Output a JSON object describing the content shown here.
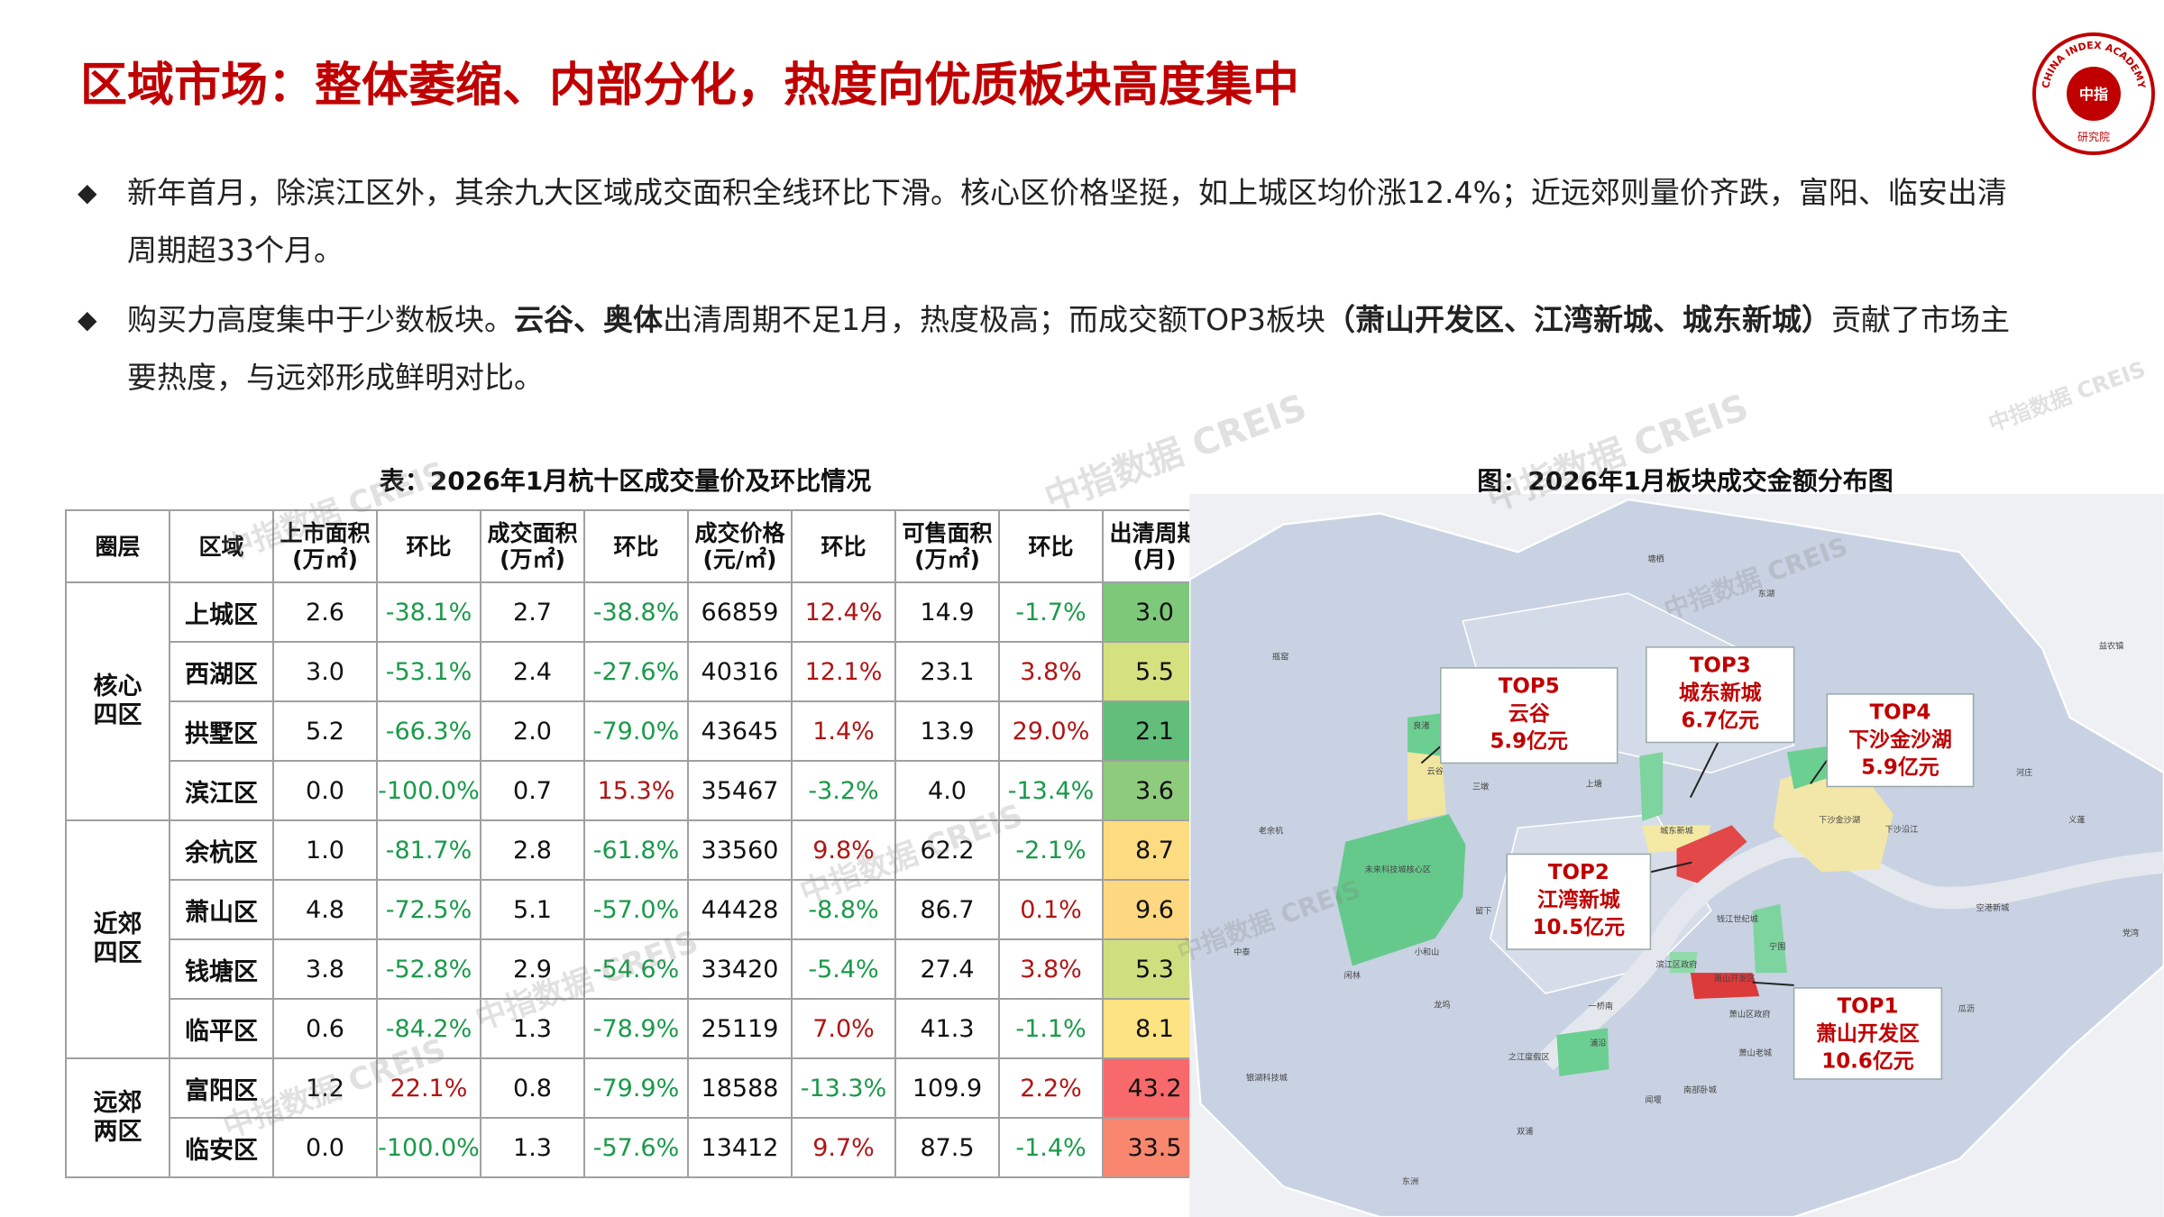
{
  "title": "区域市场：整体萎缩、内部分化，热度向优质板块高度集中",
  "logo": {
    "ring": "CHINA INDEX ACADEMY",
    "center": "中指",
    "bottom": "研究院"
  },
  "watermark": "中指数据 CREIS",
  "bullets": [
    [
      {
        "text": "新年首月，除滨江区外，其余九大区域成交面积全线环比下滑。核心区价格坚挺，如上城区均价涨12.4%；近远郊则量价齐跌，富阳、临安出清周期超33个月。",
        "bold": false
      }
    ],
    [
      {
        "text": "购买力高度集中于少数板块。",
        "bold": false
      },
      {
        "text": "云谷、奥体",
        "bold": true
      },
      {
        "text": "出清周期不足1月，热度极高；而成交额TOP3板块",
        "bold": false
      },
      {
        "text": "（萧山开发区、江湾新城、城东新城）",
        "bold": true
      },
      {
        "text": "贡献了市场主要热度，与远郊形成鲜明对比。",
        "bold": false
      }
    ]
  ],
  "table": {
    "title": "表：2026年1月杭十区成交量价及环比情况",
    "header": [
      "圈层",
      "区域",
      "上市面积\n(万㎡)",
      "环比",
      "成交面积\n(万㎡)",
      "环比",
      "成交价格\n(元/㎡)",
      "环比",
      "可售面积\n(万㎡)",
      "环比",
      "出清周期\n(月)"
    ],
    "groups": [
      {
        "label": "核心\n四区",
        "colors": [
          "#7ec87a",
          "#d5e07f",
          "#63be7b",
          "#8fcb7d"
        ],
        "rows": [
          [
            "上城区",
            "2.6",
            "-38.1%",
            "2.7",
            "-38.8%",
            "66859",
            "12.4%",
            "14.9",
            "-1.7%",
            "3.0"
          ],
          [
            "西湖区",
            "3.0",
            "-53.1%",
            "2.4",
            "-27.6%",
            "40316",
            "12.1%",
            "23.1",
            "3.8%",
            "5.5"
          ],
          [
            "拱墅区",
            "5.2",
            "-66.3%",
            "2.0",
            "-79.0%",
            "43645",
            "1.4%",
            "13.9",
            "29.0%",
            "2.1"
          ],
          [
            "滨江区",
            "0.0",
            "-100.0%",
            "0.7",
            "15.3%",
            "35467",
            "-3.2%",
            "4.0",
            "-13.4%",
            "3.6"
          ]
        ]
      },
      {
        "label": "近郊\n四区",
        "colors": [
          "#fddb80",
          "#fed880",
          "#cfdf80",
          "#fee382"
        ],
        "rows": [
          [
            "余杭区",
            "1.0",
            "-81.7%",
            "2.8",
            "-61.8%",
            "33560",
            "9.8%",
            "62.2",
            "-2.1%",
            "8.7"
          ],
          [
            "萧山区",
            "4.8",
            "-72.5%",
            "5.1",
            "-57.0%",
            "44428",
            "-8.8%",
            "86.7",
            "0.1%",
            "9.6"
          ],
          [
            "钱塘区",
            "3.8",
            "-52.8%",
            "2.9",
            "-54.6%",
            "33420",
            "-5.4%",
            "27.4",
            "3.8%",
            "5.3"
          ],
          [
            "临平区",
            "0.6",
            "-84.2%",
            "1.3",
            "-78.9%",
            "25119",
            "7.0%",
            "41.3",
            "-1.1%",
            "8.1"
          ]
        ]
      },
      {
        "label": "远郊\n两区",
        "colors": [
          "#f8696b",
          "#f9876f"
        ],
        "rows": [
          [
            "富阳区",
            "1.2",
            "22.1%",
            "0.8",
            "-79.9%",
            "18588",
            "-13.3%",
            "109.9",
            "2.2%",
            "43.2"
          ],
          [
            "临安区",
            "0.0",
            "-100.0%",
            "1.3",
            "-57.6%",
            "13412",
            "9.7%",
            "87.5",
            "-1.4%",
            "33.5"
          ]
        ]
      }
    ]
  },
  "map": {
    "title": "图：2026年1月板块成交金额分布图",
    "callouts": [
      [
        "TOP5",
        "云谷",
        "5.9亿元"
      ],
      [
        "TOP3",
        "城东新城",
        "6.7亿元"
      ],
      [
        "TOP4",
        "下沙金沙湖",
        "5.9亿元"
      ],
      [
        "TOP2",
        "江湾新城",
        "10.5亿元"
      ],
      [
        "TOP1",
        "萧山开发区",
        "10.6亿元"
      ]
    ],
    "places": [
      "瓶窑",
      "良渚",
      "云谷",
      "三墩",
      "上塘",
      "老余杭",
      "未来科技城核心区",
      "城东新城",
      "下沙金沙湖",
      "下沙沿江",
      "钱江世纪城",
      "留下",
      "小和山",
      "中泰",
      "闲林",
      "宁围",
      "滨江区政府",
      "萧山开发区",
      "一桥南",
      "萧山区政府",
      "龙坞",
      "之江度假区",
      "浦沿",
      "萧山老城",
      "南部卧城",
      "银湖科技城",
      "瓜沥",
      "空港新城",
      "党湾",
      "义蓬",
      "河庄",
      "塘栖",
      "东湖",
      "闻堰",
      "双浦",
      "东洲",
      "益农镇"
    ]
  }
}
